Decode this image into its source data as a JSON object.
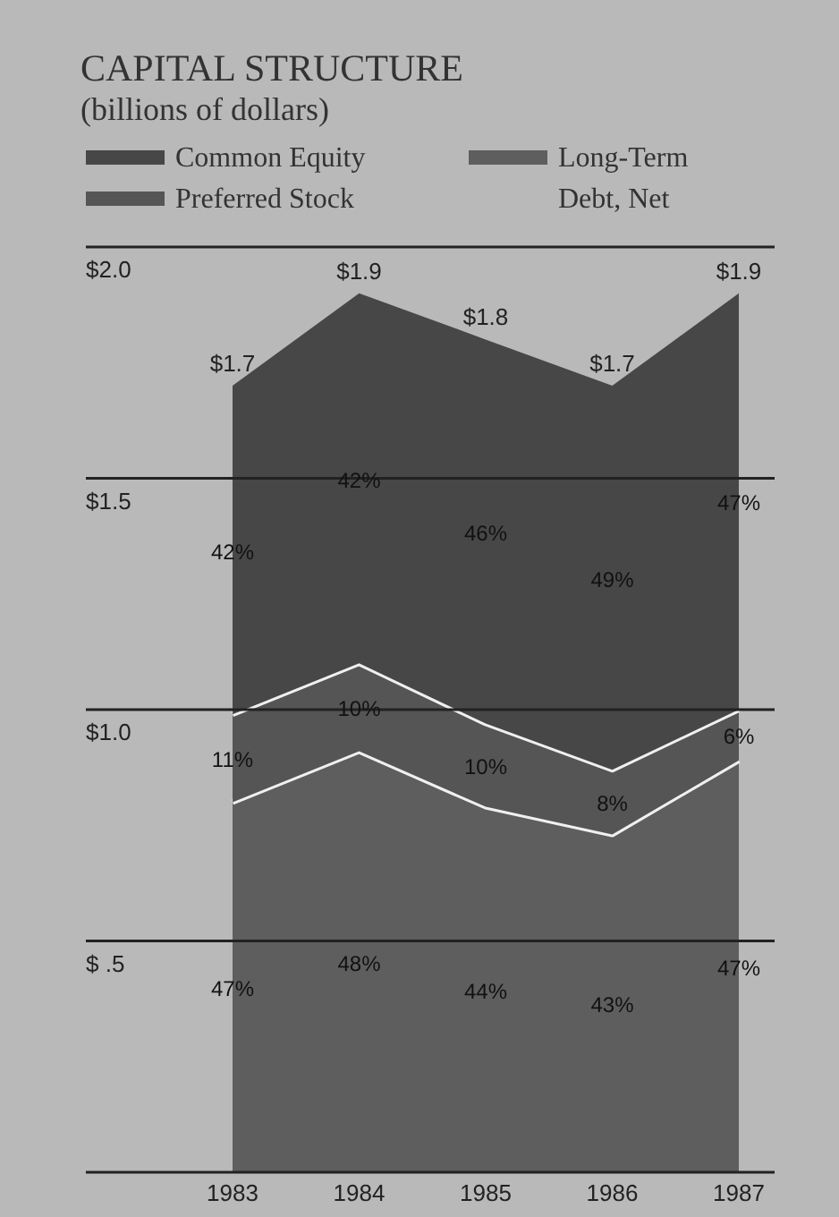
{
  "chart_data": {
    "type": "area",
    "title": "CAPITAL STRUCTURE",
    "subtitle": "(billions of dollars)",
    "categories": [
      "1983",
      "1984",
      "1985",
      "1986",
      "1987"
    ],
    "stacked": true,
    "series": [
      {
        "name": "Long-Term Debt, Net",
        "color": "#5e5e5e",
        "values": [
          0.8,
          0.91,
          0.79,
          0.73,
          0.89
        ]
      },
      {
        "name": "Preferred Stock",
        "color": "#555555",
        "values": [
          0.19,
          0.19,
          0.18,
          0.14,
          0.11
        ]
      },
      {
        "name": "Common Equity",
        "color": "#474747",
        "values": [
          0.71,
          0.8,
          0.83,
          0.83,
          0.9
        ]
      }
    ],
    "annotations": [
      "47%",
      "48%",
      "44%",
      "43%",
      "47%",
      "11%",
      "10%",
      "10%",
      "8%",
      "6%",
      "42%",
      "42%",
      "46%",
      "49%",
      "47%"
    ],
    "totals": [
      "$1.7",
      "$1.9",
      "$1.8",
      "$1.7",
      "$1.9"
    ],
    "ylim": [
      0,
      2.0
    ],
    "yticks": [
      {
        "value": 0,
        "label": null
      },
      {
        "value": 0.5,
        "label": "$ .5"
      },
      {
        "value": 1,
        "label": "$1.0"
      },
      {
        "value": 1.5,
        "label": "$1.5"
      },
      {
        "value": 2,
        "label": "$2.0"
      }
    ],
    "grid": "y",
    "legend": "top"
  }
}
